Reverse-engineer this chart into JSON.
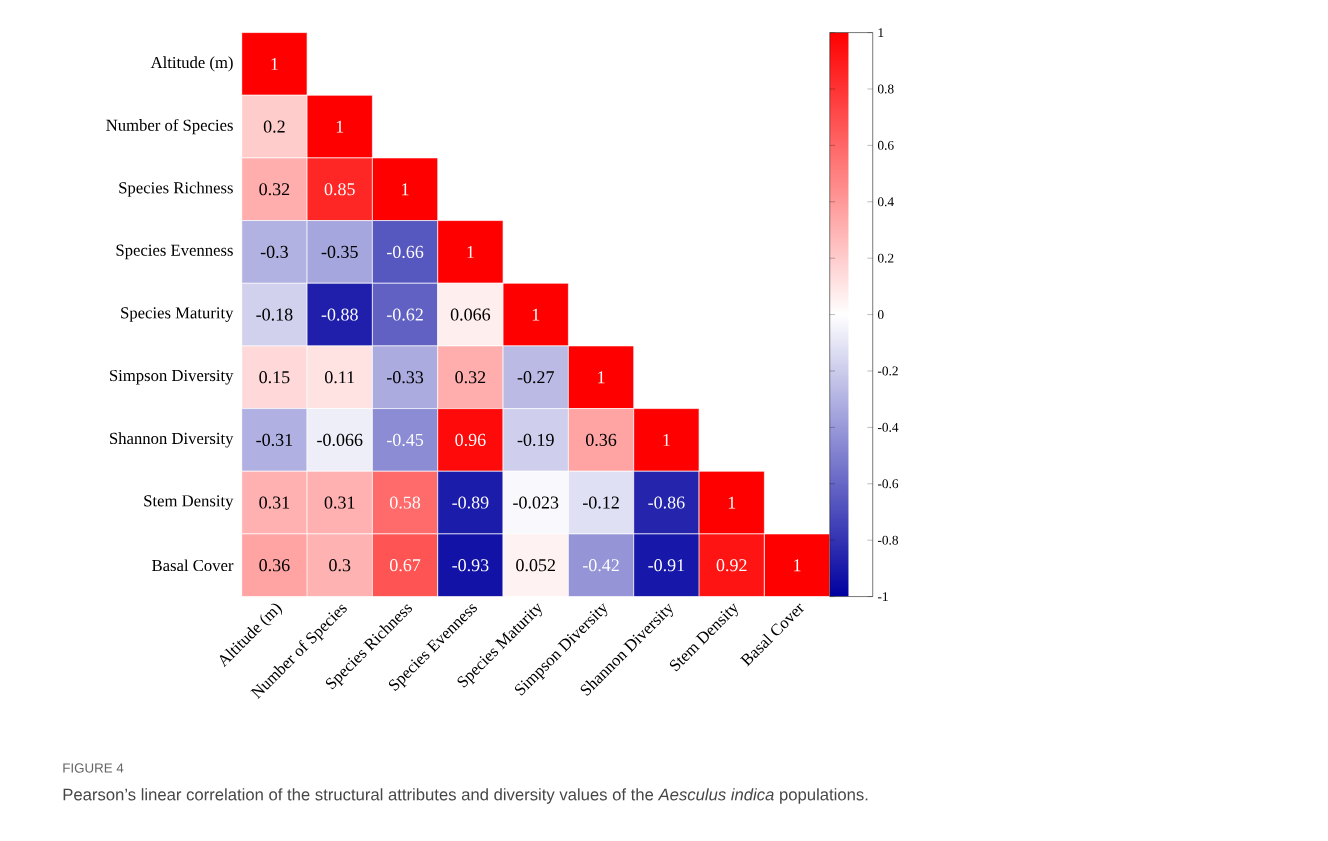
{
  "chart_data": {
    "type": "heatmap",
    "categories": [
      "Altitude (m)",
      "Number of Species",
      "Species Richness",
      "Species Evenness",
      "Species Maturity",
      "Simpson Diversity",
      "Shannon Diversity",
      "Stem Density",
      "Basal Cover"
    ],
    "y_categories": [
      "Altitude (m)",
      "Number of Species",
      "Species Richness",
      "Species Evenness",
      "Species Maturity",
      "Simpson Diversity",
      "Shannon Diversity",
      "Stem Density",
      "Basal Cover"
    ],
    "cells": [
      [
        1,
        null,
        null,
        null,
        null,
        null,
        null,
        null,
        null
      ],
      [
        0.2,
        1,
        null,
        null,
        null,
        null,
        null,
        null,
        null
      ],
      [
        0.32,
        0.85,
        1,
        null,
        null,
        null,
        null,
        null,
        null
      ],
      [
        -0.3,
        -0.35,
        -0.66,
        1,
        null,
        null,
        null,
        null,
        null
      ],
      [
        -0.18,
        -0.88,
        -0.62,
        0.066,
        1,
        null,
        null,
        null,
        null
      ],
      [
        0.15,
        0.11,
        -0.33,
        0.32,
        -0.27,
        1,
        null,
        null,
        null
      ],
      [
        -0.31,
        -0.066,
        -0.45,
        0.96,
        -0.19,
        0.36,
        1,
        null,
        null
      ],
      [
        0.31,
        0.31,
        0.58,
        -0.89,
        -0.023,
        -0.12,
        -0.86,
        1,
        null
      ],
      [
        0.36,
        0.3,
        0.67,
        -0.93,
        0.052,
        -0.42,
        -0.91,
        0.92,
        1
      ]
    ],
    "clim": [
      -1,
      1
    ],
    "cticks": [
      -1,
      -0.8,
      -0.6,
      -0.4,
      -0.2,
      0,
      0.2,
      0.4,
      0.6,
      0.8,
      1
    ],
    "data_labels": true,
    "annotations": [
      "FIGURE 4",
      "Pearson’s linear correlation of the structural attributes and diversity values of the *Aesculus indica* populations."
    ]
  }
}
